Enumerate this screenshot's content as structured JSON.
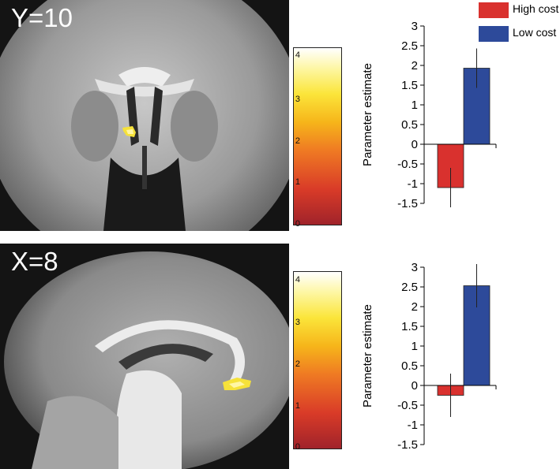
{
  "legend": [
    {
      "label": "High cost",
      "color": "#d9312e"
    },
    {
      "label": "Low cost",
      "color": "#2d4a9a"
    }
  ],
  "colorbar": {
    "ticks": [
      "0",
      "1",
      "2",
      "3",
      "4"
    ]
  },
  "panels": [
    {
      "slice_label": "Y=10"
    },
    {
      "slice_label": "X=8"
    }
  ],
  "chart_data": [
    {
      "type": "bar",
      "categories": [
        "High cost",
        "Low cost"
      ],
      "values": [
        -1.1,
        1.93
      ],
      "errors": [
        0.5,
        0.5
      ],
      "colors": [
        "#d9312e",
        "#2d4a9a"
      ],
      "ylabel": "Parameter estimate",
      "ylim": [
        -1.5,
        3
      ],
      "yticks": [
        "3",
        "2.5",
        "2",
        "1.5",
        "1",
        "0.5",
        "0",
        "-0.5",
        "-1",
        "-1.5"
      ],
      "grid": false
    },
    {
      "type": "bar",
      "categories": [
        "High cost",
        "Low cost"
      ],
      "values": [
        -0.25,
        2.53
      ],
      "errors": [
        0.55,
        0.55
      ],
      "colors": [
        "#d9312e",
        "#2d4a9a"
      ],
      "ylabel": "Parameter estimate",
      "ylim": [
        -1.5,
        3
      ],
      "yticks": [
        "3",
        "2.5",
        "2",
        "1.5",
        "1",
        "0.5",
        "0",
        "-0.5",
        "-1",
        "-1.5"
      ],
      "grid": false
    }
  ]
}
